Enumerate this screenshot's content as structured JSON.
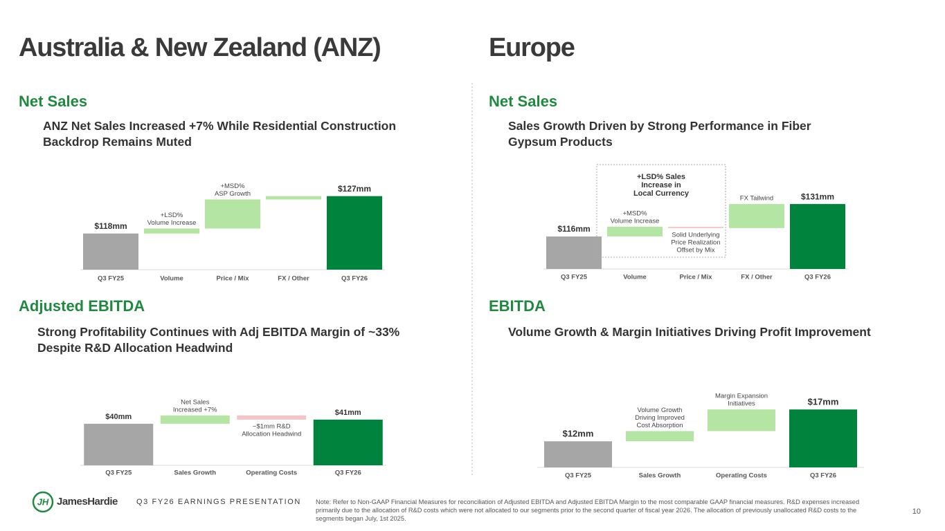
{
  "header": {
    "left_title": "Australia & New Zealand (ANZ)",
    "right_title": "Europe"
  },
  "sections": [
    {
      "heading": "Net Sales",
      "subheading": [
        "ANZ Net Sales Increased +7% While Residential Construction",
        "Backdrop Remains Muted"
      ]
    },
    {
      "heading": "Net Sales",
      "subheading": [
        "Sales Growth Driven by Strong Performance in Fiber",
        "Gypsum Products"
      ]
    },
    {
      "heading": "Adjusted EBITDA",
      "subheading": [
        "Strong Profitability Continues with Adj EBITDA Margin of ~33%",
        "Despite R&D Allocation Headwind"
      ]
    },
    {
      "heading": "EBITDA",
      "subheading": [
        "Volume Growth & Margin Initiatives Driving Profit Improvement"
      ]
    }
  ],
  "chart_data": [
    {
      "type": "waterfall",
      "categories": [
        "Q3 FY25",
        "Volume",
        "Price / Mix",
        "FX / Other",
        "Q3 FY26"
      ],
      "values": [
        118,
        1.2,
        7,
        0.8,
        127
      ],
      "value_labels": [
        "$118mm",
        null,
        null,
        null,
        "$127mm"
      ],
      "annotations": [
        null,
        [
          "+LSD%",
          "Volume Increase"
        ],
        [
          "+MSD%",
          "ASP Growth"
        ],
        null,
        null
      ],
      "colors": [
        "#a6a6a6",
        "#b4e5a2",
        "#b4e5a2",
        "#b4e5a2",
        "#00843d"
      ],
      "ylim": [
        109.3,
        132.6
      ]
    },
    {
      "type": "waterfall",
      "categories": [
        "Q3 FY25",
        "Volume",
        "Price / Mix",
        "FX / Other",
        "Q3 FY26"
      ],
      "values": [
        116,
        4.5,
        -0.6,
        11.1,
        131
      ],
      "value_labels": [
        "$116mm",
        null,
        null,
        null,
        "$131mm"
      ],
      "annotations": [
        null,
        [
          "+MSD%",
          "Volume Increase"
        ],
        [
          "Solid Underlying",
          "Price Realization",
          "Offset by Mix"
        ],
        [
          "FX Tailwind"
        ],
        null
      ],
      "bracket_label": [
        "+LSD% Sales",
        "Increase in",
        "Local Currency"
      ],
      "colors": [
        "#a6a6a6",
        "#b4e5a2",
        "#f5c4c4",
        "#b4e5a2",
        "#00843d"
      ],
      "ylim": [
        101,
        145.4
      ]
    },
    {
      "type": "waterfall",
      "categories": [
        "Q3 FY25",
        "Sales Growth",
        "Operating Costs",
        "Q3 FY26"
      ],
      "values": [
        40,
        2,
        -1,
        41
      ],
      "value_labels": [
        "$40mm",
        null,
        null,
        "$41mm"
      ],
      "annotations": [
        null,
        [
          "Net Sales",
          "Increased +7%"
        ],
        [
          "~$1mm R&D",
          "Allocation Headwind"
        ],
        null
      ],
      "colors": [
        "#a6a6a6",
        "#b4e5a2",
        "#f5c4c4",
        "#00843d"
      ],
      "ylim": [
        30,
        48.8
      ]
    },
    {
      "type": "waterfall",
      "categories": [
        "Q3 FY25",
        "Sales Growth",
        "Operating Costs",
        "Q3 FY26"
      ],
      "values": [
        12,
        1.6,
        3.4,
        17
      ],
      "value_labels": [
        "$12mm",
        null,
        null,
        "$17mm"
      ],
      "annotations": [
        null,
        [
          "Volume Growth",
          "Driving Improved",
          "Cost Absorption"
        ],
        [
          "Margin Expansion",
          "Initiatives"
        ],
        null
      ],
      "colors": [
        "#a6a6a6",
        "#b4e5a2",
        "#b4e5a2",
        "#00843d"
      ],
      "ylim": [
        7.9,
        20.5
      ]
    }
  ],
  "footer": {
    "brand": "JamesHardie",
    "presentation_label": "Q3 FY26 EARNINGS PRESENTATION",
    "note": "Note: Refer to Non-GAAP Financial Measures for reconciliation of Adjusted EBITDA and Adjusted EBITDA Margin to the most comparable GAAP financial measures. R&D expenses increased primarily due to the allocation of R&D costs which were not allocated to our segments prior to the second quarter of fiscal year 2026. The allocation of previously unallocated R&D costs to the segments began July, 1st 2025.",
    "page_number": "10"
  }
}
